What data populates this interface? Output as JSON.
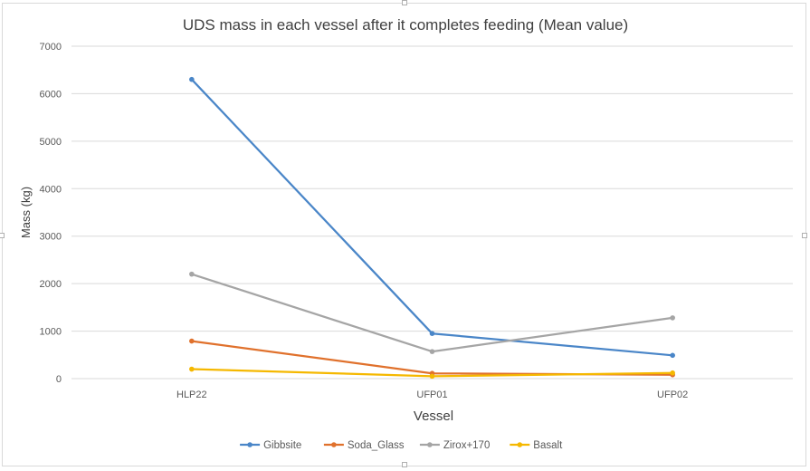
{
  "chart_data": {
    "type": "line",
    "title": "UDS mass in each vessel after it completes feeding (Mean value)",
    "xlabel": "Vessel",
    "ylabel": "Mass (kg)",
    "categories": [
      "HLP22",
      "UFP01",
      "UFP02"
    ],
    "ylim": [
      0,
      7000
    ],
    "yticks": [
      0,
      1000,
      2000,
      3000,
      4000,
      5000,
      6000,
      7000
    ],
    "grid": true,
    "legend_position": "bottom",
    "series": [
      {
        "name": "Gibbsite",
        "color": "#4a86c8",
        "values": [
          6300,
          950,
          490
        ]
      },
      {
        "name": "Soda_Glass",
        "color": "#e0712c",
        "values": [
          790,
          110,
          80
        ]
      },
      {
        "name": "Zirox+170",
        "color": "#a5a5a5",
        "values": [
          2200,
          570,
          1280
        ]
      },
      {
        "name": "Basalt",
        "color": "#f5b800",
        "values": [
          200,
          50,
          120
        ]
      }
    ]
  }
}
